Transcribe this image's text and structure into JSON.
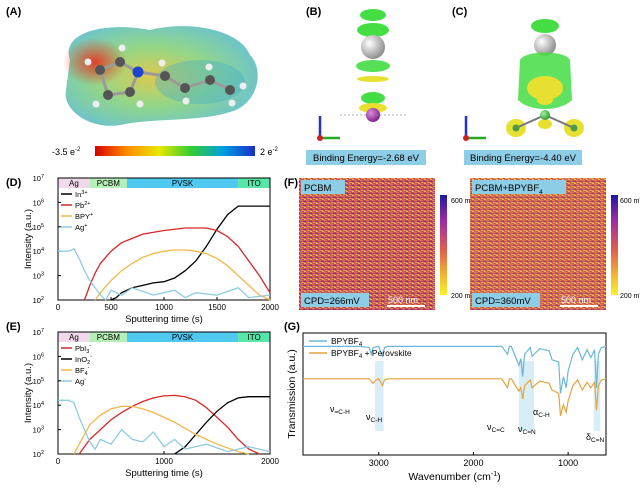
{
  "panels": {
    "a": "(A)",
    "b": "(B)",
    "c": "(C)",
    "d": "(D)",
    "e": "(E)",
    "f": "(F)",
    "g": "(G)"
  },
  "panel_a": {
    "scale_min": "-3.5 e",
    "scale_max": "2 e",
    "exp": "-2"
  },
  "panel_b": {
    "label": "Binding Energy=-2.68 eV"
  },
  "panel_c": {
    "label": "Binding Energy=-4.40 eV"
  },
  "colors": {
    "black": "#000000",
    "red": "#d62728",
    "orange": "#f0b84a",
    "blue": "#8fcbe0",
    "ag_band": "#f1d9ec",
    "pcbm_band": "#b6efb6",
    "pvsk_band": "#4fc9f0",
    "ito_band": "#55e6a8",
    "ftir_blue": "#6ab8d8",
    "ftir_orange": "#e6a23c",
    "label_bar": "#8ecde6"
  },
  "chart_data": [
    {
      "id": "D",
      "type": "line",
      "xlabel": "Sputtering time (s)",
      "ylabel": "Intensity (a.u.)",
      "xlim": [
        0,
        2000
      ],
      "ylim_log10": [
        2,
        7
      ],
      "xticks": [
        "0",
        "500",
        "1000",
        "1500",
        "2000"
      ],
      "yticks": [
        "10",
        "10",
        "10",
        "10",
        "10",
        "10"
      ],
      "ytick_exps": [
        "2",
        "3",
        "4",
        "5",
        "6",
        "7"
      ],
      "bands": [
        {
          "name": "Ag",
          "from": 0,
          "to": 300,
          "color": "#f1d9ec"
        },
        {
          "name": "PCBM",
          "from": 300,
          "to": 650,
          "color": "#b6efb6"
        },
        {
          "name": "PVSK",
          "from": 650,
          "to": 1700,
          "color": "#4fc9f0"
        },
        {
          "name": "ITO",
          "from": 1700,
          "to": 2000,
          "color": "#55e6a8"
        }
      ],
      "legend": [
        {
          "name": "In",
          "sup": "3+",
          "color": "#000000"
        },
        {
          "name": "Pb",
          "sup": "2+",
          "color": "#d62728"
        },
        {
          "name": "BPY",
          "sup": "+",
          "color": "#f0b84a"
        },
        {
          "name": "Ag",
          "sup": "+",
          "color": "#8fcbe0"
        }
      ],
      "series": [
        {
          "name": "In3+",
          "color": "#000000",
          "x": [
            500,
            550,
            600,
            700,
            800,
            900,
            1000,
            1100,
            1200,
            1300,
            1400,
            1500,
            1600,
            1700,
            1800,
            1900,
            2000
          ],
          "log": [
            2.0,
            2.1,
            2.3,
            2.5,
            2.6,
            2.7,
            2.75,
            2.9,
            3.2,
            3.6,
            4.2,
            4.9,
            5.5,
            5.85,
            5.85,
            5.85,
            5.85
          ]
        },
        {
          "name": "Pb2+",
          "color": "#d62728",
          "x": [
            250,
            300,
            350,
            400,
            500,
            600,
            800,
            1000,
            1200,
            1400,
            1500,
            1600,
            1700,
            1800,
            1900,
            2000
          ],
          "log": [
            2.0,
            2.6,
            3.1,
            3.5,
            4.0,
            4.35,
            4.7,
            4.85,
            4.95,
            4.95,
            4.85,
            4.6,
            4.2,
            3.6,
            3.0,
            2.3
          ]
        },
        {
          "name": "BPY+",
          "color": "#f0b84a",
          "x": [
            350,
            400,
            500,
            600,
            700,
            800,
            900,
            1000,
            1100,
            1200,
            1300,
            1400,
            1500,
            1600,
            1700,
            1800,
            1900,
            2000
          ],
          "log": [
            2.0,
            2.3,
            2.8,
            3.2,
            3.5,
            3.75,
            3.9,
            4.0,
            4.05,
            4.05,
            4.0,
            3.9,
            3.7,
            3.4,
            3.0,
            2.6,
            2.2,
            2.0
          ]
        },
        {
          "name": "Ag+",
          "color": "#8fcbe0",
          "x": [
            0,
            100,
            150,
            200,
            250,
            300,
            350,
            400,
            450,
            500,
            600,
            700,
            900,
            1100,
            1200,
            1300,
            1500,
            1700,
            1800,
            2000
          ],
          "log": [
            4.0,
            4.0,
            4.1,
            3.7,
            3.2,
            2.8,
            2.5,
            2.2,
            2.0,
            2.4,
            2.2,
            2.5,
            2.2,
            2.4,
            2.1,
            2.3,
            2.2,
            2.5,
            2.1,
            2.2
          ]
        }
      ]
    },
    {
      "id": "E",
      "type": "line",
      "xlabel": "Sputtering time (s)",
      "ylabel": "Intensity (a.u.)",
      "xlim": [
        0,
        2000
      ],
      "ylim_log10": [
        2,
        7
      ],
      "xticks": [
        "0",
        "1000",
        "2000"
      ],
      "yticks": [
        "10",
        "10",
        "10",
        "10",
        "10",
        "10"
      ],
      "ytick_exps": [
        "2",
        "3",
        "4",
        "5",
        "6",
        "7"
      ],
      "bands": [
        {
          "name": "Ag",
          "from": 0,
          "to": 300,
          "color": "#f1d9ec"
        },
        {
          "name": "PCBM",
          "from": 300,
          "to": 650,
          "color": "#b6efb6"
        },
        {
          "name": "PVSK",
          "from": 650,
          "to": 1700,
          "color": "#4fc9f0"
        },
        {
          "name": "ITO",
          "from": 1700,
          "to": 2000,
          "color": "#55e6a8"
        }
      ],
      "legend": [
        {
          "name": "PbI",
          "sub": "3",
          "sup": "-",
          "color": "#d62728"
        },
        {
          "name": "InO",
          "sub": "2",
          "sup": "-",
          "color": "#000000"
        },
        {
          "name": "BF",
          "sub": "4",
          "sup": "-",
          "color": "#f0b84a"
        },
        {
          "name": "Ag",
          "sup": "-",
          "color": "#8fcbe0"
        }
      ],
      "series": [
        {
          "name": "PbI3-",
          "color": "#d62728",
          "x": [
            200,
            300,
            400,
            500,
            600,
            700,
            800,
            900,
            1000,
            1100,
            1200,
            1300,
            1400,
            1500,
            1600,
            1700,
            1800,
            1900
          ],
          "log": [
            2.0,
            2.6,
            3.0,
            3.4,
            3.7,
            3.95,
            4.15,
            4.3,
            4.38,
            4.4,
            4.35,
            4.2,
            3.9,
            3.5,
            3.1,
            2.6,
            2.2,
            2.0
          ]
        },
        {
          "name": "InO2-",
          "color": "#000000",
          "x": [
            1100,
            1200,
            1300,
            1400,
            1500,
            1600,
            1700,
            1800,
            1900,
            2000
          ],
          "log": [
            2.0,
            2.3,
            2.8,
            3.3,
            3.75,
            4.1,
            4.3,
            4.35,
            4.35,
            4.35
          ]
        },
        {
          "name": "BF4-",
          "color": "#f0b84a",
          "x": [
            150,
            200,
            300,
            400,
            500,
            600,
            700,
            800,
            900,
            1000,
            1100,
            1200,
            1300,
            1500,
            1700,
            1800
          ],
          "log": [
            2.0,
            2.4,
            3.2,
            3.6,
            3.85,
            3.95,
            3.95,
            3.85,
            3.7,
            3.5,
            3.3,
            3.05,
            2.8,
            2.4,
            2.1,
            2.0
          ]
        },
        {
          "name": "Ag-",
          "color": "#8fcbe0",
          "x": [
            0,
            100,
            150,
            200,
            250,
            300,
            350,
            400,
            500,
            600,
            700,
            800,
            900,
            1000,
            1100,
            1200,
            1400,
            1600,
            1800,
            2000
          ],
          "log": [
            4.2,
            4.2,
            4.1,
            3.5,
            3.0,
            2.5,
            2.2,
            2.6,
            2.4,
            3.0,
            2.6,
            2.5,
            2.9,
            2.3,
            2.6,
            2.2,
            2.4,
            2.1,
            2.3,
            2.1
          ]
        }
      ]
    },
    {
      "id": "F",
      "type": "heatmap",
      "maps": [
        {
          "title": "PCBM",
          "cpd": "CPD=266mV",
          "scale": "500 nm"
        },
        {
          "title": "PCBM+BPYBF",
          "title_sub": "4",
          "cpd": "CPD=360mV",
          "scale": "500 nm"
        }
      ],
      "colorbar": {
        "max": "600 mV",
        "min": "200 mV"
      }
    },
    {
      "id": "G",
      "type": "line",
      "xlabel": "Wavenumber (cm",
      "xlabel_sup": "-1",
      "xlabel_end": ")",
      "ylabel": "Transmission (a.u.)",
      "xlim": [
        3800,
        600
      ],
      "xticks": [
        "3000",
        "2000",
        "1000"
      ],
      "legend": [
        {
          "name": "BPYBF",
          "sub": "4",
          "color": "#6ab8d8"
        },
        {
          "name": "BPYBF",
          "sub": "4",
          "extra": " + Perovskite",
          "color": "#e6a23c"
        }
      ],
      "annotations": [
        {
          "main": "ν",
          "sub": "=C-H"
        },
        {
          "main": "ν",
          "sub": "C-H"
        },
        {
          "main": "ν",
          "sub": "C=C"
        },
        {
          "main": "ν",
          "sub": "C=N"
        },
        {
          "main": "α",
          "sub": "C-H"
        },
        {
          "main": "δ",
          "sub": "C=N"
        }
      ],
      "highlights": [
        [
          3040,
          2950
        ],
        [
          1520,
          1360
        ],
        [
          730,
          660
        ]
      ],
      "series": [
        {
          "name": "BPYBF4",
          "color": "#6ab8d8",
          "x": [
            3800,
            3200,
            3100,
            3080,
            3060,
            3000,
            2960,
            2940,
            2900,
            2000,
            1700,
            1640,
            1620,
            1600,
            1520,
            1500,
            1480,
            1460,
            1400,
            1380,
            1300,
            1200,
            1170,
            1100,
            1080,
            1050,
            1020,
            1000,
            950,
            900,
            850,
            800,
            760,
            720,
            700,
            680,
            650,
            600
          ],
          "t": [
            0.97,
            0.97,
            0.96,
            0.9,
            0.96,
            0.97,
            0.88,
            0.96,
            0.97,
            0.97,
            0.97,
            0.9,
            0.97,
            0.97,
            0.8,
            0.86,
            0.7,
            0.9,
            0.96,
            0.88,
            0.95,
            0.93,
            0.85,
            0.83,
            0.55,
            0.7,
            0.6,
            0.75,
            0.9,
            0.96,
            0.85,
            0.94,
            0.87,
            0.94,
            0.6,
            0.9,
            0.96,
            0.97
          ]
        },
        {
          "name": "BPYBF4 + Perovskite",
          "color": "#e6a23c",
          "x": [
            3800,
            3100,
            3060,
            3030,
            3000,
            2960,
            2940,
            2900,
            2000,
            1700,
            1640,
            1620,
            1600,
            1520,
            1500,
            1480,
            1460,
            1400,
            1380,
            1300,
            1200,
            1170,
            1100,
            1080,
            1050,
            1020,
            1000,
            950,
            900,
            850,
            800,
            760,
            720,
            700,
            680,
            650,
            600
          ],
          "t": [
            0.68,
            0.68,
            0.64,
            0.67,
            0.68,
            0.62,
            0.67,
            0.68,
            0.68,
            0.68,
            0.6,
            0.68,
            0.68,
            0.57,
            0.6,
            0.5,
            0.62,
            0.67,
            0.6,
            0.66,
            0.64,
            0.58,
            0.55,
            0.35,
            0.45,
            0.38,
            0.48,
            0.62,
            0.67,
            0.58,
            0.65,
            0.6,
            0.65,
            0.4,
            0.62,
            0.67,
            0.68
          ]
        }
      ]
    }
  ]
}
